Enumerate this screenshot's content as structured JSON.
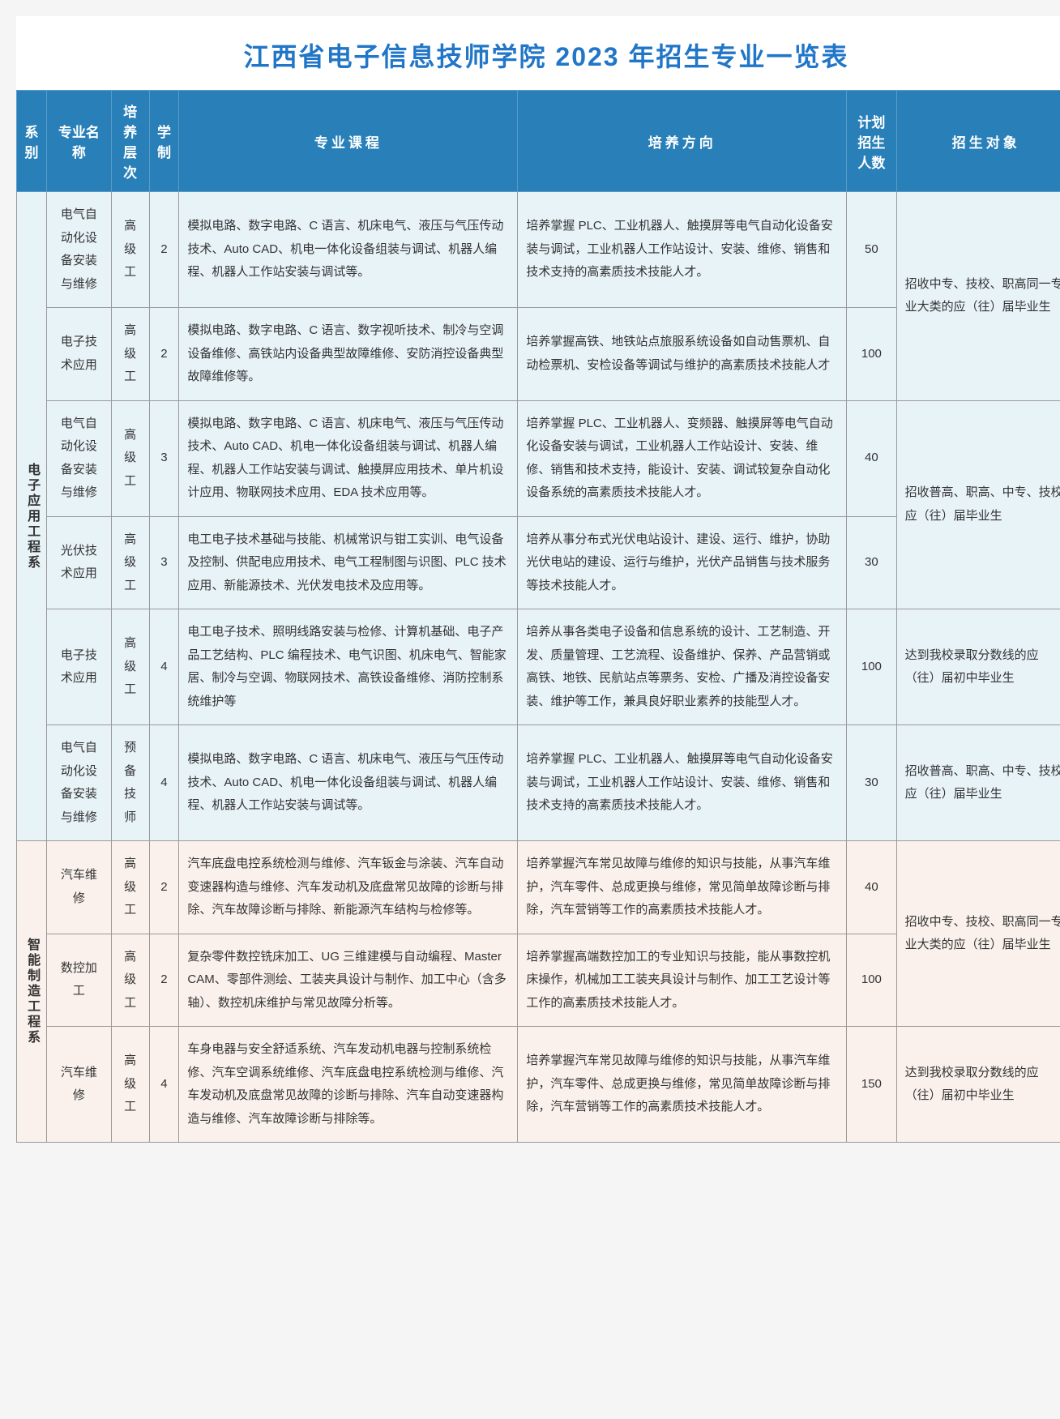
{
  "title": "江西省电子信息技师学院 2023 年招生专业一览表",
  "colors": {
    "header_bg": "#2980b9",
    "header_text": "#ffffff",
    "title_text": "#2176c7",
    "border": "#999999",
    "dept1_bg": "#e8f3f8",
    "dept2_bg": "#faf1ec"
  },
  "headers": {
    "dept": "系别",
    "major": "专业名称",
    "level": "培养层次",
    "years": "学制",
    "curriculum": "专业课程",
    "direction": "培养方向",
    "plan": "计划招生人数",
    "target": "招生对象"
  },
  "departments": [
    {
      "name": "电子应用工程系",
      "bg_class": "dept1-bg",
      "rows": [
        {
          "major": "电气自动化设备安装与维修",
          "level": "高级工",
          "years": "2",
          "curriculum": "模拟电路、数字电路、C 语言、机床电气、液压与气压传动技术、Auto CAD、机电一体化设备组装与调试、机器人编程、机器人工作站安装与调试等。",
          "direction": "培养掌握 PLC、工业机器人、触摸屏等电气自动化设备安装与调试，工业机器人工作站设计、安装、维修、销售和技术支持的高素质技术技能人才。",
          "plan": "50",
          "target": "招收中专、技校、职高同一专业大类的应（往）届毕业生",
          "target_rowspan": 2
        },
        {
          "major": "电子技术应用",
          "level": "高级工",
          "years": "2",
          "curriculum": "模拟电路、数字电路、C 语言、数字视听技术、制冷与空调设备维修、高铁站内设备典型故障维修、安防消控设备典型故障维修等。",
          "direction": "培养掌握高铁、地铁站点旅服系统设备如自动售票机、自动检票机、安检设备等调试与维护的高素质技术技能人才",
          "plan": "100"
        },
        {
          "major": "电气自动化设备安装与维修",
          "level": "高级工",
          "years": "3",
          "curriculum": "模拟电路、数字电路、C 语言、机床电气、液压与气压传动技术、Auto CAD、机电一体化设备组装与调试、机器人编程、机器人工作站安装与调试、触摸屏应用技术、单片机设计应用、物联网技术应用、EDA 技术应用等。",
          "direction": "培养掌握 PLC、工业机器人、变频器、触摸屏等电气自动化设备安装与调试，工业机器人工作站设计、安装、维修、销售和技术支持，能设计、安装、调试较复杂自动化设备系统的高素质技术技能人才。",
          "plan": "40",
          "target": "招收普高、职高、中专、技校应（往）届毕业生",
          "target_rowspan": 2
        },
        {
          "major": "光伏技术应用",
          "level": "高级工",
          "years": "3",
          "curriculum": "电工电子技术基础与技能、机械常识与钳工实训、电气设备及控制、供配电应用技术、电气工程制图与识图、PLC 技术应用、新能源技术、光伏发电技术及应用等。",
          "direction": "培养从事分布式光伏电站设计、建设、运行、维护，协助光伏电站的建设、运行与维护，光伏产品销售与技术服务等技术技能人才。",
          "plan": "30"
        },
        {
          "major": "电子技术应用",
          "level": "高级工",
          "years": "4",
          "curriculum": "电工电子技术、照明线路安装与检修、计算机基础、电子产品工艺结构、PLC 编程技术、电气识图、机床电气、智能家居、制冷与空调、物联网技术、高铁设备维修、消防控制系统维护等",
          "direction": "培养从事各类电子设备和信息系统的设计、工艺制造、开发、质量管理、工艺流程、设备维护、保养、产品营销或高铁、地铁、民航站点等票务、安检、广播及消控设备安装、维护等工作，兼具良好职业素养的技能型人才。",
          "plan": "100",
          "target": "达到我校录取分数线的应（往）届初中毕业生",
          "target_rowspan": 1
        },
        {
          "major": "电气自动化设备安装与维修",
          "level": "预备技师",
          "years": "4",
          "curriculum": "模拟电路、数字电路、C 语言、机床电气、液压与气压传动技术、Auto CAD、机电一体化设备组装与调试、机器人编程、机器人工作站安装与调试等。",
          "direction": "培养掌握 PLC、工业机器人、触摸屏等电气自动化设备安装与调试，工业机器人工作站设计、安装、维修、销售和技术支持的高素质技术技能人才。",
          "plan": "30",
          "target": "招收普高、职高、中专、技校应（往）届毕业生",
          "target_rowspan": 1
        }
      ]
    },
    {
      "name": "智能制造工程系",
      "bg_class": "dept2-bg",
      "rows": [
        {
          "major": "汽车维修",
          "level": "高级工",
          "years": "2",
          "curriculum": "汽车底盘电控系统检测与维修、汽车钣金与涂装、汽车自动变速器构造与维修、汽车发动机及底盘常见故障的诊断与排除、汽车故障诊断与排除、新能源汽车结构与检修等。",
          "direction": "培养掌握汽车常见故障与维修的知识与技能，从事汽车维护，汽车零件、总成更换与维修，常见简单故障诊断与排除，汽车营销等工作的高素质技术技能人才。",
          "plan": "40",
          "target": "招收中专、技校、职高同一专业大类的应（往）届毕业生",
          "target_rowspan": 2
        },
        {
          "major": "数控加工",
          "level": "高级工",
          "years": "2",
          "curriculum": "复杂零件数控铣床加工、UG 三维建模与自动编程、Master CAM、零部件测绘、工装夹具设计与制作、加工中心（含多轴）、数控机床维护与常见故障分析等。",
          "direction": "培养掌握高端数控加工的专业知识与技能，能从事数控机床操作，机械加工工装夹具设计与制作、加工工艺设计等工作的高素质技术技能人才。",
          "plan": "100"
        },
        {
          "major": "汽车维修",
          "level": "高级工",
          "years": "4",
          "curriculum": "车身电器与安全舒适系统、汽车发动机电器与控制系统检修、汽车空调系统维修、汽车底盘电控系统检测与维修、汽车发动机及底盘常见故障的诊断与排除、汽车自动变速器构造与维修、汽车故障诊断与排除等。",
          "direction": "培养掌握汽车常见故障与维修的知识与技能，从事汽车维护，汽车零件、总成更换与维修，常见简单故障诊断与排除，汽车营销等工作的高素质技术技能人才。",
          "plan": "150",
          "target": "达到我校录取分数线的应（往）届初中毕业生",
          "target_rowspan": 1
        }
      ]
    }
  ]
}
